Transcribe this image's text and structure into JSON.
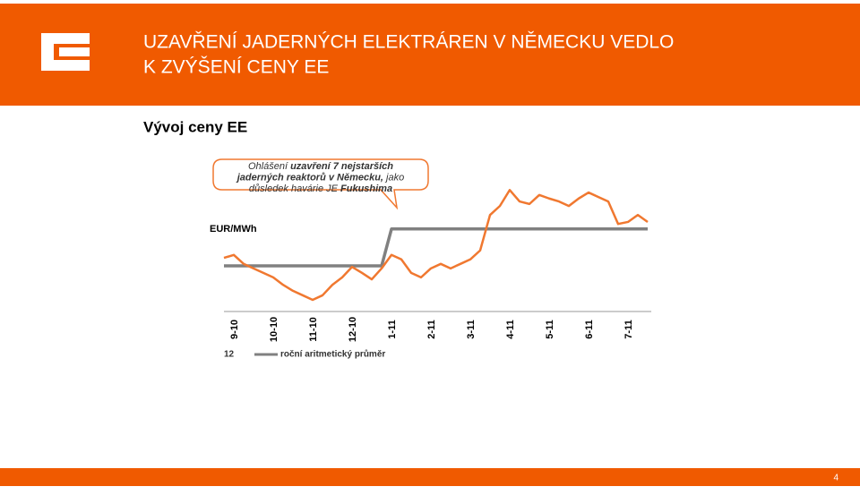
{
  "header": {
    "title_lines": [
      "UZAVŘENÍ JADERNÝCH ELEKTRÁREN V NĚMECKU VEDLO",
      "K  ZVÝŠENÍ CENY EE"
    ]
  },
  "footer": {
    "page_number": "4"
  },
  "chart_data": {
    "type": "line",
    "title": "Vývoj ceny EE",
    "y_label": "EUR/MWh",
    "annotation_lines": [
      [
        {
          "text": "Ohlášení ",
          "bold": false
        },
        {
          "text": "uzavření 7 nejstarších",
          "bold": true
        }
      ],
      [
        {
          "text": "jaderných reaktorů v Německu,",
          "bold": true
        },
        {
          "text": " jako",
          "bold": false
        }
      ],
      [
        {
          "text": "důsledek havárie JE ",
          "bold": false
        },
        {
          "text": "Fukushima",
          "bold": true
        }
      ]
    ],
    "categories": [
      null,
      "9-10",
      null,
      null,
      null,
      "10-10",
      null,
      null,
      null,
      "11-10",
      null,
      null,
      null,
      "12-10",
      null,
      null,
      null,
      "1-11",
      null,
      null,
      null,
      "2-11",
      null,
      null,
      null,
      "3-11",
      null,
      null,
      null,
      "4-11",
      null,
      null,
      null,
      "5-11",
      null,
      null,
      null,
      "6-11",
      null,
      null,
      null,
      "7-11",
      null,
      null
    ],
    "ylim": [
      38,
      64
    ],
    "series": [
      {
        "name": "12",
        "color": "#f07830",
        "values": [
          48.2,
          48.8,
          47.0,
          46.1,
          45.2,
          44.3,
          42.8,
          41.6,
          40.7,
          39.8,
          40.7,
          42.8,
          44.3,
          46.4,
          45.2,
          43.9,
          46.1,
          48.8,
          47.9,
          45.2,
          44.3,
          46.1,
          47.0,
          46.1,
          47.0,
          47.9,
          49.7,
          56.8,
          58.6,
          61.8,
          59.5,
          59.0,
          60.8,
          60.1,
          59.5,
          58.6,
          60.1,
          61.3,
          60.4,
          59.5,
          55.0,
          55.4,
          56.8,
          55.4
        ]
      },
      {
        "name": "roční aritmetický průměr",
        "color": "#808080",
        "values": [
          46.6,
          46.6,
          46.6,
          46.6,
          46.6,
          46.6,
          46.6,
          46.6,
          46.6,
          46.6,
          46.6,
          46.6,
          46.6,
          46.6,
          46.6,
          46.6,
          46.6,
          54.0,
          54.0,
          54.0,
          54.0,
          54.0,
          54.0,
          54.0,
          54.0,
          54.0,
          54.0,
          54.0,
          54.0,
          54.0,
          54.0,
          54.0,
          54.0,
          54.0,
          54.0,
          54.0,
          54.0,
          54.0,
          54.0,
          54.0,
          54.0,
          54.0,
          54.0,
          54.0
        ]
      }
    ]
  }
}
